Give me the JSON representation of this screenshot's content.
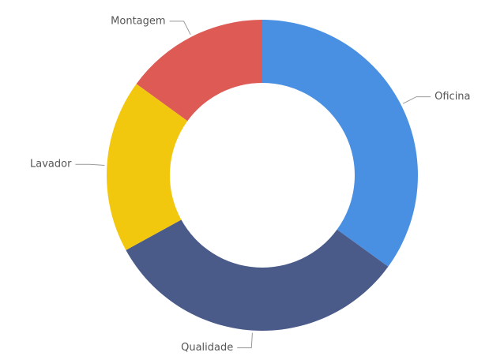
{
  "chart_data": {
    "type": "donut",
    "categories": [
      "Oficina",
      "Qualidade",
      "Lavador",
      "Montagem"
    ],
    "values": [
      35,
      32,
      18,
      15
    ],
    "colors": [
      "#4a90e2",
      "#4a5b8a",
      "#f2c80f",
      "#dd5a55"
    ]
  }
}
